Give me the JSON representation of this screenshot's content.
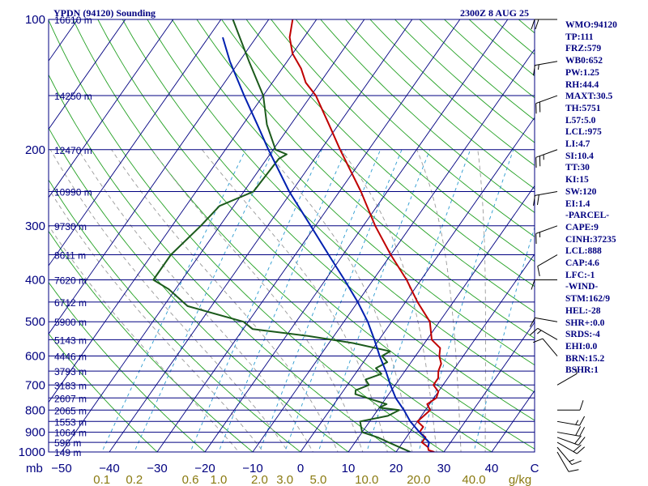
{
  "header": {
    "station": "YPDN (94120) Sounding",
    "time": "2300Z  8 AUG 25"
  },
  "stats": [
    "WMO:94120",
    "TP:111",
    "FRZ:579",
    "WB0:652",
    "PW:1.25",
    "RH:44.4",
    "MAXT:30.5",
    "TH:5751",
    "L57:5.0",
    "LCL:975",
    "LI:4.7",
    "SI:10.4",
    "TT:30",
    "KI:15",
    "SW:120",
    "EI:1.4",
    "-PARCEL-",
    "CAPE:9",
    "CINH:37235",
    "LCL:888",
    "CAP:4.6",
    "LFC:-1",
    "-WIND-",
    "STM:162/9",
    "HEL:-28",
    "SHR+:0.0",
    "SRDS:-4",
    "EHI:0.0",
    "BRN:15.2",
    "BSHR:1"
  ],
  "colors": {
    "isobar": "#000080",
    "isotherm": "#000080",
    "dry_adiabat": "#22a022",
    "moist_adiabat": "#999999",
    "mixing_ratio": "#2a9ad0",
    "temperature": "#c00000",
    "dewpoint": "#1b5a1b",
    "parcel": "#0020b0",
    "wind": "#000000"
  },
  "chart_data": {
    "type": "line",
    "diagram": "skew-T log-P",
    "pressure_range_hpa": [
      1000,
      100
    ],
    "isobars": [
      {
        "p": 100,
        "label": "100",
        "height": "16610 m"
      },
      {
        "p": 150,
        "label": "",
        "height": "14250 m"
      },
      {
        "p": 200,
        "label": "200",
        "height": "12470 m"
      },
      {
        "p": 250,
        "label": "",
        "height": "10990 m"
      },
      {
        "p": 300,
        "label": "300",
        "height": "9730 m"
      },
      {
        "p": 350,
        "label": "",
        "height": "8611 m"
      },
      {
        "p": 400,
        "label": "400",
        "height": "7620 m"
      },
      {
        "p": 450,
        "label": "",
        "height": "6712 m"
      },
      {
        "p": 500,
        "label": "500",
        "height": "5900 m"
      },
      {
        "p": 550,
        "label": "",
        "height": "5143 m"
      },
      {
        "p": 600,
        "label": "600",
        "height": "4446 m"
      },
      {
        "p": 650,
        "label": "",
        "height": "3793 m"
      },
      {
        "p": 700,
        "label": "700",
        "height": "3183 m"
      },
      {
        "p": 750,
        "label": "",
        "height": "2607 m"
      },
      {
        "p": 800,
        "label": "800",
        "height": "2065 m"
      },
      {
        "p": 850,
        "label": "",
        "height": "1553 m"
      },
      {
        "p": 900,
        "label": "900",
        "height": "1064 m"
      },
      {
        "p": 950,
        "label": "",
        "height": "596 m"
      },
      {
        "p": 1000,
        "label": "1000",
        "height": "149 m"
      }
    ],
    "pressure_axis_unit": "mb",
    "temperature_ticks": [
      "−50",
      "−40",
      "−30",
      "−20",
      "−10",
      "0",
      "10",
      "20",
      "30",
      "40"
    ],
    "temperature_axis_end": "C",
    "mixing_ratio_ticks": [
      "0.1",
      "0.2",
      "0.6",
      "1.0",
      "2.0",
      "3.0",
      "5.0",
      "10.0",
      "20.0",
      "40.0"
    ],
    "mixing_ratio_unit": "g/kg",
    "temperature_profile": [
      [
        1000,
        28.0
      ],
      [
        990,
        26.5
      ],
      [
        975,
        26.0
      ],
      [
        950,
        24.0
      ],
      [
        925,
        24.0
      ],
      [
        900,
        22.0
      ],
      [
        875,
        22.0
      ],
      [
        850,
        20.0
      ],
      [
        825,
        20.5
      ],
      [
        800,
        21.0
      ],
      [
        775,
        19.5
      ],
      [
        750,
        20.5
      ],
      [
        725,
        20.0
      ],
      [
        700,
        18.0
      ],
      [
        675,
        18.0
      ],
      [
        650,
        17.0
      ],
      [
        625,
        16.5
      ],
      [
        600,
        15.0
      ],
      [
        575,
        14.0
      ],
      [
        550,
        11.0
      ],
      [
        500,
        8.0
      ],
      [
        450,
        2.5
      ],
      [
        400,
        -3.0
      ],
      [
        350,
        -10.0
      ],
      [
        300,
        -17.5
      ],
      [
        250,
        -25.5
      ],
      [
        200,
        -36.0
      ],
      [
        175,
        -42.0
      ],
      [
        150,
        -49.0
      ],
      [
        140,
        -53.0
      ],
      [
        130,
        -56.0
      ],
      [
        120,
        -60.0
      ],
      [
        110,
        -63.0
      ],
      [
        100,
        -65.0
      ]
    ],
    "dewpoint_profile": [
      [
        1000,
        23.0
      ],
      [
        975,
        20.0
      ],
      [
        950,
        17.0
      ],
      [
        925,
        14.0
      ],
      [
        900,
        10.0
      ],
      [
        875,
        9.0
      ],
      [
        850,
        8.0
      ],
      [
        825,
        13.0
      ],
      [
        800,
        14.5
      ],
      [
        790,
        10.0
      ],
      [
        775,
        11.0
      ],
      [
        750,
        6.0
      ],
      [
        735,
        3.0
      ],
      [
        720,
        2.5
      ],
      [
        700,
        4.5
      ],
      [
        680,
        3.0
      ],
      [
        660,
        5.5
      ],
      [
        640,
        3.5
      ],
      [
        620,
        5.0
      ],
      [
        600,
        3.0
      ],
      [
        585,
        4.0
      ],
      [
        560,
        -5.0
      ],
      [
        540,
        -15.0
      ],
      [
        520,
        -28.0
      ],
      [
        500,
        -31.0
      ],
      [
        460,
        -45.0
      ],
      [
        420,
        -51.5
      ],
      [
        400,
        -56.0
      ],
      [
        350,
        -56.0
      ],
      [
        300,
        -54.0
      ],
      [
        270,
        -53.0
      ],
      [
        250,
        -48.0
      ],
      [
        210,
        -47.5
      ],
      [
        205,
        -46.5
      ],
      [
        200,
        -49.5
      ],
      [
        175,
        -55.0
      ],
      [
        150,
        -60.0
      ],
      [
        125,
        -68.0
      ],
      [
        100,
        -77.5
      ]
    ],
    "parcel_profile": [
      [
        975,
        26.0
      ],
      [
        950,
        25.5
      ],
      [
        900,
        22.0
      ],
      [
        850,
        18.5
      ],
      [
        800,
        15.5
      ],
      [
        750,
        12.0
      ],
      [
        700,
        9.0
      ],
      [
        650,
        6.0
      ],
      [
        600,
        2.5
      ],
      [
        550,
        -1.0
      ],
      [
        500,
        -5.0
      ],
      [
        450,
        -10.0
      ],
      [
        400,
        -16.0
      ],
      [
        350,
        -23.0
      ],
      [
        300,
        -31.0
      ],
      [
        250,
        -40.5
      ],
      [
        200,
        -51.0
      ],
      [
        175,
        -57.0
      ],
      [
        150,
        -64.0
      ],
      [
        125,
        -72.0
      ],
      [
        110,
        -77.0
      ]
    ],
    "winds": [
      {
        "p": 1000,
        "dir": 150,
        "spd": 10
      },
      {
        "p": 975,
        "dir": 140,
        "spd": 15
      },
      {
        "p": 950,
        "dir": 120,
        "spd": 20
      },
      {
        "p": 925,
        "dir": 110,
        "spd": 20
      },
      {
        "p": 900,
        "dir": 100,
        "spd": 20
      },
      {
        "p": 850,
        "dir": 100,
        "spd": 15
      },
      {
        "p": 800,
        "dir": 90,
        "spd": 10
      },
      {
        "p": 700,
        "dir": 60,
        "spd": 5
      },
      {
        "p": 600,
        "dir": 320,
        "spd": 10
      },
      {
        "p": 550,
        "dir": 300,
        "spd": 15
      },
      {
        "p": 500,
        "dir": 280,
        "spd": 10
      },
      {
        "p": 400,
        "dir": 270,
        "spd": 10
      },
      {
        "p": 350,
        "dir": 240,
        "spd": 10
      },
      {
        "p": 300,
        "dir": 250,
        "spd": 15
      },
      {
        "p": 250,
        "dir": 260,
        "spd": 20
      },
      {
        "p": 200,
        "dir": 250,
        "spd": 25
      },
      {
        "p": 150,
        "dir": 250,
        "spd": 20
      },
      {
        "p": 125,
        "dir": 260,
        "spd": 15
      },
      {
        "p": 100,
        "dir": 270,
        "spd": 20
      }
    ]
  }
}
